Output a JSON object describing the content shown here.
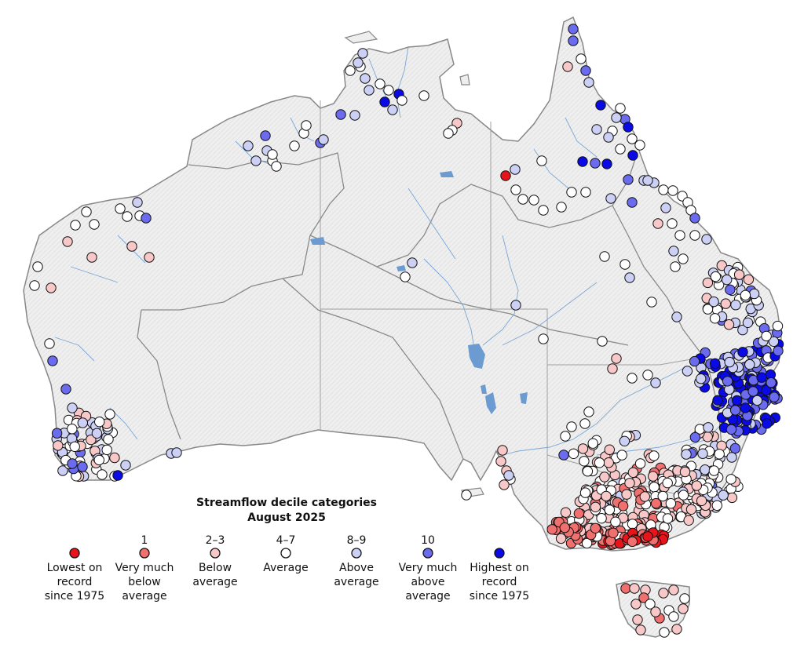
{
  "legend": {
    "title_line1": "Streamflow decile categories",
    "title_line2": "August 2025",
    "categories": [
      {
        "key": "lowest",
        "number": "",
        "label": [
          "Lowest on",
          "record",
          "since 1975"
        ],
        "color": "#e8141c"
      },
      {
        "key": "very_much_below",
        "number": "1",
        "label": [
          "Very much",
          "below",
          "average"
        ],
        "color": "#f07070"
      },
      {
        "key": "below",
        "number": "2–3",
        "label": [
          "Below",
          "average"
        ],
        "color": "#f8c8c8"
      },
      {
        "key": "average",
        "number": "4–7",
        "label": [
          "Average"
        ],
        "color": "#ffffff"
      },
      {
        "key": "above",
        "number": "8–9",
        "label": [
          "Above",
          "average"
        ],
        "color": "#cdd0f5"
      },
      {
        "key": "very_much_above",
        "number": "10",
        "label": [
          "Very much",
          "above",
          "average"
        ],
        "color": "#6b6bf0"
      },
      {
        "key": "highest",
        "number": "",
        "label": [
          "Highest on",
          "record",
          "since 1975"
        ],
        "color": "#0a0ae6"
      }
    ]
  },
  "colors": {
    "land": "#eeeeee",
    "coast": "#888888",
    "state_border": "#a0a0a0",
    "river": "#7aa6d6",
    "lake": "#6b9bd1",
    "marker_stroke": "#111111"
  }
}
